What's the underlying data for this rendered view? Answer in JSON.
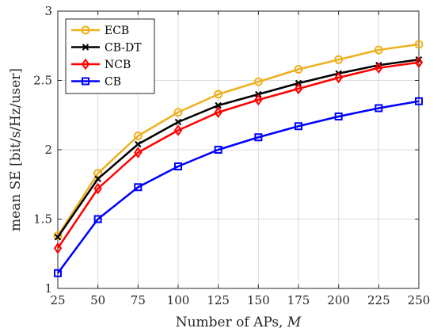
{
  "chart_data": {
    "type": "line",
    "x": [
      25,
      50,
      75,
      100,
      125,
      150,
      175,
      200,
      225,
      250
    ],
    "xlabel": "Number of APs, ",
    "xlabel_var": "M",
    "ylabel": "mean SE [bit/s/Hz/user]",
    "xlim": [
      25,
      250
    ],
    "ylim": [
      1,
      3
    ],
    "xticks": [
      "25",
      "50",
      "75",
      "100",
      "125",
      "150",
      "175",
      "200",
      "225",
      "250"
    ],
    "yticks": [
      "1",
      "1.5",
      "2",
      "2.5",
      "3"
    ],
    "ytick_values": [
      1,
      1.5,
      2,
      2.5,
      3
    ],
    "grid": true,
    "legend_position": "top-left",
    "series": [
      {
        "name": "ECB",
        "color": "#EDB120",
        "marker": "circle",
        "values": [
          1.38,
          1.83,
          2.1,
          2.27,
          2.4,
          2.49,
          2.58,
          2.65,
          2.72,
          2.76
        ]
      },
      {
        "name": "CB-DT",
        "color": "#000000",
        "marker": "x",
        "values": [
          1.37,
          1.79,
          2.04,
          2.2,
          2.32,
          2.4,
          2.48,
          2.55,
          2.61,
          2.65
        ]
      },
      {
        "name": "NCB",
        "color": "#FF0000",
        "marker": "diamond",
        "values": [
          1.29,
          1.72,
          1.98,
          2.14,
          2.27,
          2.36,
          2.44,
          2.52,
          2.59,
          2.63
        ]
      },
      {
        "name": "CB",
        "color": "#0000FF",
        "marker": "square",
        "values": [
          1.11,
          1.5,
          1.73,
          1.88,
          2.0,
          2.09,
          2.17,
          2.24,
          2.3,
          2.35
        ]
      }
    ]
  }
}
